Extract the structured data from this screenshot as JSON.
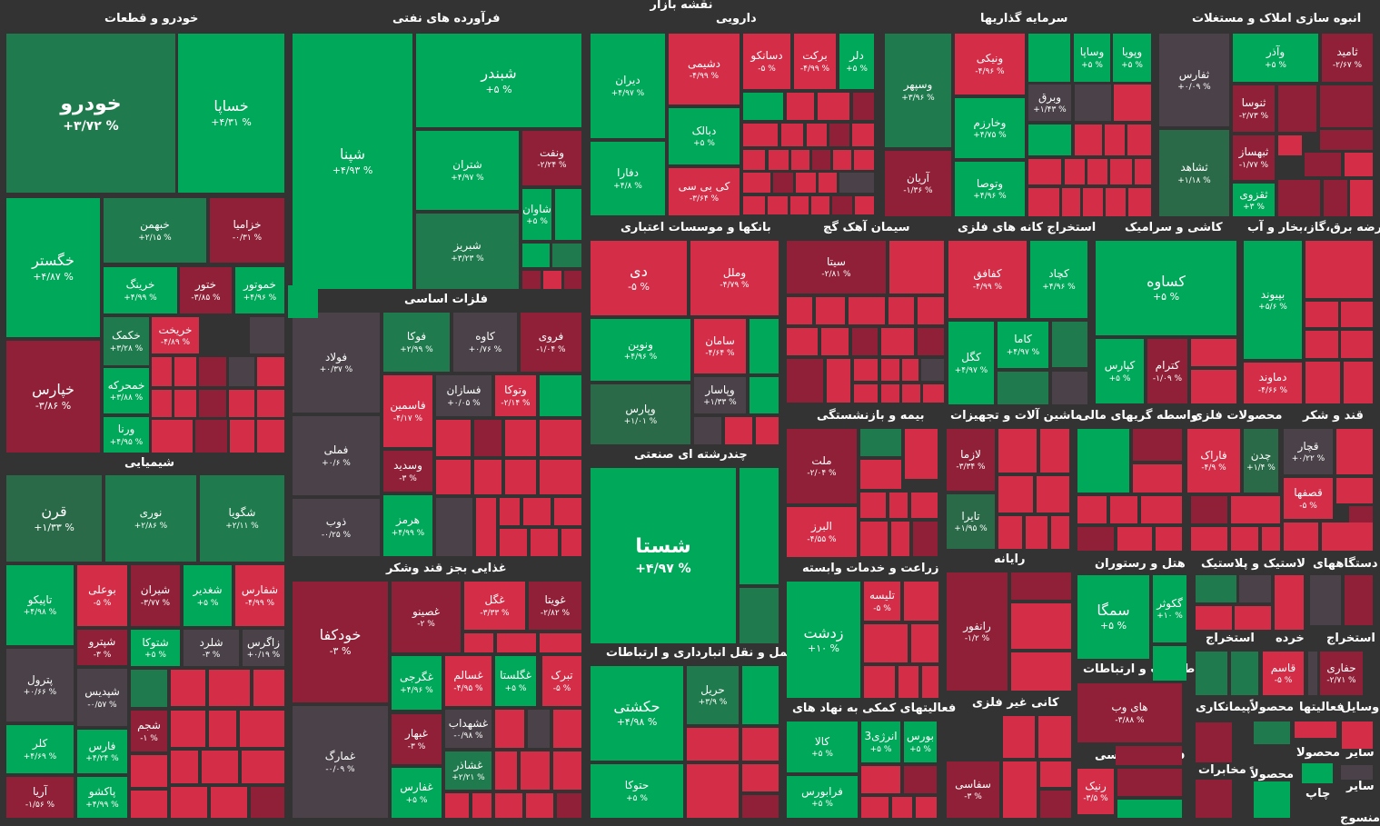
{
  "title": "نقشه بازار",
  "sections": [
    {
      "name": "خودرو و قطعات"
    },
    {
      "name": "فرآورده های نفتی"
    },
    {
      "name": "دارویی"
    },
    {
      "name": "سرمایه گذاریها"
    },
    {
      "name": "انبوه سازی املاک و مستغلات"
    },
    {
      "name": "بانکها و موسسات اعتباری"
    },
    {
      "name": "سیمان آهک گچ"
    },
    {
      "name": "استخراج کانه های فلزی"
    },
    {
      "name": "کاشی و سرامیک"
    },
    {
      "name": "عرضه برق،گاز،بخار و آب"
    },
    {
      "name": "فلزات اساسی"
    },
    {
      "name": "شیمیایی"
    },
    {
      "name": "چندرشته ای صنعتی"
    },
    {
      "name": "بیمه و بازنشستگی"
    },
    {
      "name": "ماشین آلات و تجهیزات"
    },
    {
      "name": "واسطه گریهای مالی"
    },
    {
      "name": "محصولات فلزی"
    },
    {
      "name": "قند و شکر"
    },
    {
      "name": "غذایی بجز قند وشکر"
    },
    {
      "name": "زراعت و خدمات وابسته"
    },
    {
      "name": "رایانه"
    },
    {
      "name": "هتل و رستوران"
    },
    {
      "name": "لاستیک و پلاستیک"
    },
    {
      "name": "دستگاههای"
    },
    {
      "name": "حمل و نقل انبارداری و ارتباطات"
    },
    {
      "name": "اطلاعات و ارتباطات"
    },
    {
      "name": "فعالیتهای کمکی به نهاد های"
    },
    {
      "name": "کانی غیر فلزی"
    },
    {
      "name": "فنی و مهندسی"
    },
    {
      "name": "استخراج"
    },
    {
      "name": "خرده"
    },
    {
      "name": "استخراج"
    },
    {
      "name": "وسایل"
    },
    {
      "name": "فعالیتها"
    },
    {
      "name": "محصولاً"
    },
    {
      "name": "پیمانکاری"
    },
    {
      "name": "سایر"
    },
    {
      "name": "محصولا"
    },
    {
      "name": "مخابرات"
    },
    {
      "name": "محصولاً"
    },
    {
      "name": "سایر"
    },
    {
      "name": "چاپ"
    },
    {
      "name": "منسوج"
    }
  ],
  "tiles": [
    {
      "symbol": "خودرو",
      "change": "+۳/۷۲ %",
      "color": "DG"
    },
    {
      "symbol": "خساپا",
      "change": "+۴/۳۱ %",
      "color": "G"
    },
    {
      "symbol": "خگستر",
      "change": "+۴/۸۷ %",
      "color": "G"
    },
    {
      "symbol": "خبهمن",
      "change": "+۲/۱۵ %",
      "color": "DG"
    },
    {
      "symbol": "خزامیا",
      "change": "-۰/۳۱ %",
      "color": "DR"
    },
    {
      "symbol": "خپارس",
      "change": "-۳/۸۶ %",
      "color": "DR"
    },
    {
      "symbol": "خرینگ",
      "change": "+۴/۹۹ %",
      "color": "G"
    },
    {
      "symbol": "ختور",
      "change": "-۳/۸۵ %",
      "color": "DR"
    },
    {
      "symbol": "خموتور",
      "change": "+۴/۹۶ %",
      "color": "G"
    },
    {
      "symbol": "خکمک",
      "change": "+۳/۲۸ %",
      "color": "DG"
    },
    {
      "symbol": "خریخت",
      "change": "-۴/۸۹ %",
      "color": "R"
    },
    {
      "symbol": "خمحرکه",
      "change": "+۳/۸۸ %",
      "color": "G"
    },
    {
      "symbol": "ورنا",
      "change": "+۴/۹۵ %",
      "color": "G"
    },
    {
      "symbol": "شپنا",
      "change": "+۴/۹۳ %",
      "color": "G"
    },
    {
      "symbol": "شبندر",
      "change": "+۵ %",
      "color": "G"
    },
    {
      "symbol": "شتران",
      "change": "+۴/۹۷ %",
      "color": "G"
    },
    {
      "symbol": "ونفت",
      "change": "-۲/۲۴ %",
      "color": "DR"
    },
    {
      "symbol": "شبریز",
      "change": "+۳/۲۳ %",
      "color": "DG"
    },
    {
      "symbol": "شاوان",
      "change": "+۵ %",
      "color": "G"
    },
    {
      "symbol": "دیران",
      "change": "+۴/۹۷ %",
      "color": "G"
    },
    {
      "symbol": "دشیمی",
      "change": "-۴/۹۹ %",
      "color": "R"
    },
    {
      "symbol": "دسانکو",
      "change": "-۵ %",
      "color": "R"
    },
    {
      "symbol": "برکت",
      "change": "-۴/۹۹ %",
      "color": "R"
    },
    {
      "symbol": "دلر",
      "change": "+۵ %",
      "color": "G"
    },
    {
      "symbol": "دبالک",
      "change": "+۵ %",
      "color": "G"
    },
    {
      "symbol": "دفارا",
      "change": "+۴/۸ %",
      "color": "G"
    },
    {
      "symbol": "کی بی سی",
      "change": "-۳/۶۴ %",
      "color": "R"
    },
    {
      "symbol": "وسپهر",
      "change": "+۳/۹۶ %",
      "color": "DG"
    },
    {
      "symbol": "ونیکی",
      "change": "-۴/۹۶ %",
      "color": "R"
    },
    {
      "symbol": "وساپا",
      "change": "+۵ %",
      "color": "G"
    },
    {
      "symbol": "وپویا",
      "change": "+۵ %",
      "color": "G"
    },
    {
      "symbol": "وبرق",
      "change": "+۱/۴۳ %",
      "color": "GR"
    },
    {
      "symbol": "وخارزم",
      "change": "+۴/۷۵ %",
      "color": "G"
    },
    {
      "symbol": "آریان",
      "change": "-۱/۳۶ %",
      "color": "DR"
    },
    {
      "symbol": "وتوصا",
      "change": "+۴/۹۶ %",
      "color": "G"
    },
    {
      "symbol": "ثفارس",
      "change": "+۰/۰۹ %",
      "color": "GR"
    },
    {
      "symbol": "وآذر",
      "change": "+۵ %",
      "color": "G"
    },
    {
      "symbol": "ثامید",
      "change": "-۲/۶۷ %",
      "color": "DR"
    },
    {
      "symbol": "ثنوسا",
      "change": "-۲/۷۳ %",
      "color": "DR"
    },
    {
      "symbol": "ثشاهد",
      "change": "+۱/۱۸ %",
      "color": "MG"
    },
    {
      "symbol": "ثبهساز",
      "change": "-۱/۷۷ %",
      "color": "DR"
    },
    {
      "symbol": "ثقزوی",
      "change": "+۳ %",
      "color": "G"
    },
    {
      "symbol": "دی",
      "change": "-۵ %",
      "color": "R"
    },
    {
      "symbol": "وملل",
      "change": "-۴/۷۹ %",
      "color": "R"
    },
    {
      "symbol": "ونوین",
      "change": "+۴/۹۶ %",
      "color": "G"
    },
    {
      "symbol": "سامان",
      "change": "-۴/۶۴ %",
      "color": "R"
    },
    {
      "symbol": "وپارس",
      "change": "+۱/۰۱ %",
      "color": "MG"
    },
    {
      "symbol": "وپاسار",
      "change": "+۱/۳۳ %",
      "color": "GR"
    },
    {
      "symbol": "سیتا",
      "change": "-۲/۸۱ %",
      "color": "DR"
    },
    {
      "symbol": "کفافق",
      "change": "-۴/۹۹ %",
      "color": "R"
    },
    {
      "symbol": "کچاد",
      "change": "+۴/۹۶ %",
      "color": "G"
    },
    {
      "symbol": "کگل",
      "change": "+۴/۹۷ %",
      "color": "G"
    },
    {
      "symbol": "کاما",
      "change": "+۴/۹۷ %",
      "color": "G"
    },
    {
      "symbol": "کساوه",
      "change": "+۵ %",
      "color": "G"
    },
    {
      "symbol": "کپارس",
      "change": "+۵ %",
      "color": "G"
    },
    {
      "symbol": "کترام",
      "change": "-۱/۰۹ %",
      "color": "DR"
    },
    {
      "symbol": "بپیوند",
      "change": "+۵/۶ %",
      "color": "G"
    },
    {
      "symbol": "دماوند",
      "change": "-۴/۶۶ %",
      "color": "R"
    },
    {
      "symbol": "فولاد",
      "change": "+۰/۳۷ %",
      "color": "GR"
    },
    {
      "symbol": "فوکا",
      "change": "+۲/۹۹ %",
      "color": "DG"
    },
    {
      "symbol": "کاوه",
      "change": "+۰/۷۶ %",
      "color": "GR"
    },
    {
      "symbol": "فروی",
      "change": "-۱/۰۴ %",
      "color": "DR"
    },
    {
      "symbol": "فملی",
      "change": "+۰/۶ %",
      "color": "GR"
    },
    {
      "symbol": "فسازان",
      "change": "+۰/۰۵ %",
      "color": "GR"
    },
    {
      "symbol": "وتوکا",
      "change": "-۲/۱۴ %",
      "color": "R"
    },
    {
      "symbol": "فاسمین",
      "change": "-۴/۱۷ %",
      "color": "R"
    },
    {
      "symbol": "وسدید",
      "change": "-۳ %",
      "color": "DR"
    },
    {
      "symbol": "ذوب",
      "change": "-۰/۲۵ %",
      "color": "GR"
    },
    {
      "symbol": "هرمز",
      "change": "+۴/۹۹ %",
      "color": "G"
    },
    {
      "symbol": "قرن",
      "change": "+۱/۳۳ %",
      "color": "MG"
    },
    {
      "symbol": "نوری",
      "change": "+۲/۸۶ %",
      "color": "DG"
    },
    {
      "symbol": "شگویا",
      "change": "+۲/۱۱ %",
      "color": "DG"
    },
    {
      "symbol": "تاپیکو",
      "change": "+۴/۹۸ %",
      "color": "G"
    },
    {
      "symbol": "بوعلی",
      "change": "-۵ %",
      "color": "R"
    },
    {
      "symbol": "شیران",
      "change": "-۳/۷۷ %",
      "color": "DR"
    },
    {
      "symbol": "شغدیر",
      "change": "+۵ %",
      "color": "G"
    },
    {
      "symbol": "شفارس",
      "change": "-۴/۹۹ %",
      "color": "R"
    },
    {
      "symbol": "شپترو",
      "change": "-۳ %",
      "color": "DR"
    },
    {
      "symbol": "شتوکا",
      "change": "+۵ %",
      "color": "G"
    },
    {
      "symbol": "شلرد",
      "change": "-۳ %",
      "color": "GR"
    },
    {
      "symbol": "زاگرس",
      "change": "+۰/۱۹ %",
      "color": "GR"
    },
    {
      "symbol": "پترول",
      "change": "+۰/۶۶ %",
      "color": "GR"
    },
    {
      "symbol": "شپدیس",
      "change": "-۰/۵۷ %",
      "color": "GR"
    },
    {
      "symbol": "شجم",
      "change": "-۱ %",
      "color": "DR"
    },
    {
      "symbol": "کلر",
      "change": "+۴/۶۹ %",
      "color": "G"
    },
    {
      "symbol": "فارس",
      "change": "+۴/۲۴ %",
      "color": "G"
    },
    {
      "symbol": "آریا",
      "change": "-۱/۵۶ %",
      "color": "DR"
    },
    {
      "symbol": "پاکشو",
      "change": "+۴/۹۹ %",
      "color": "G"
    },
    {
      "symbol": "شستا",
      "change": "+۴/۹۷ %",
      "color": "G"
    },
    {
      "symbol": "ملت",
      "change": "-۲/۰۴ %",
      "color": "DR"
    },
    {
      "symbol": "البرز",
      "change": "-۴/۵۵ %",
      "color": "R"
    },
    {
      "symbol": "لازما",
      "change": "-۳/۳۴ %",
      "color": "DR"
    },
    {
      "symbol": "تایرا",
      "change": "+۱/۹۵ %",
      "color": "MG"
    },
    {
      "symbol": "فاراک",
      "change": "-۴/۹ %",
      "color": "R"
    },
    {
      "symbol": "چدن",
      "change": "+۱/۴ %",
      "color": "MG"
    },
    {
      "symbol": "قچار",
      "change": "+۰/۲۲ %",
      "color": "GR"
    },
    {
      "symbol": "قصفها",
      "change": "-۵ %",
      "color": "R"
    },
    {
      "symbol": "خودکفا",
      "change": "-۳ %",
      "color": "DR"
    },
    {
      "symbol": "غصینو",
      "change": "-۲ %",
      "color": "DR"
    },
    {
      "symbol": "غگل",
      "change": "-۳/۳۳ %",
      "color": "R"
    },
    {
      "symbol": "غویتا",
      "change": "-۲/۸۲ %",
      "color": "DR"
    },
    {
      "symbol": "غگرجی",
      "change": "+۴/۹۶ %",
      "color": "G"
    },
    {
      "symbol": "غسالم",
      "change": "-۴/۹۵ %",
      "color": "R"
    },
    {
      "symbol": "غگلستا",
      "change": "+۵ %",
      "color": "G"
    },
    {
      "symbol": "تبرک",
      "change": "-۵ %",
      "color": "R"
    },
    {
      "symbol": "غبهار",
      "change": "-۳ %",
      "color": "DR"
    },
    {
      "symbol": "غشهداب",
      "change": "-۰/۹۸ %",
      "color": "GR"
    },
    {
      "symbol": "غمارگ",
      "change": "-۰/۰۹ %",
      "color": "GR"
    },
    {
      "symbol": "غشاذر",
      "change": "+۲/۲۱ %",
      "color": "DG"
    },
    {
      "symbol": "غفارس",
      "change": "+۵ %",
      "color": "G"
    },
    {
      "symbol": "زدشت",
      "change": "+۱۰ %",
      "color": "G"
    },
    {
      "symbol": "تلیسه",
      "change": "-۵ %",
      "color": "R"
    },
    {
      "symbol": "رانفور",
      "change": "-۱/۲ %",
      "color": "DR"
    },
    {
      "symbol": "سمگا",
      "change": "+۵ %",
      "color": "G"
    },
    {
      "symbol": "گکوثر",
      "change": "+۱۰ %",
      "color": "G"
    },
    {
      "symbol": "حکشتی",
      "change": "+۴/۹۸ %",
      "color": "G"
    },
    {
      "symbol": "حریل",
      "change": "+۳/۹ %",
      "color": "DG"
    },
    {
      "symbol": "حتوکا",
      "change": "+۵ %",
      "color": "G"
    },
    {
      "symbol": "های وب",
      "change": "-۳/۸۸ %",
      "color": "DR"
    },
    {
      "symbol": "کالا",
      "change": "+۵ %",
      "color": "G"
    },
    {
      "symbol": "انرژی3",
      "change": "+۵ %",
      "color": "G"
    },
    {
      "symbol": "بورس",
      "change": "+۵ %",
      "color": "G"
    },
    {
      "symbol": "فرابورس",
      "change": "+۵ %",
      "color": "G"
    },
    {
      "symbol": "سفاسی",
      "change": "-۳ %",
      "color": "DR"
    },
    {
      "symbol": "رنیک",
      "change": "-۳/۵ %",
      "color": "R"
    },
    {
      "symbol": "قاسم",
      "change": "-۵ %",
      "color": "R"
    },
    {
      "symbol": "حفاری",
      "change": "-۲/۷۱ %",
      "color": "DR"
    }
  ]
}
